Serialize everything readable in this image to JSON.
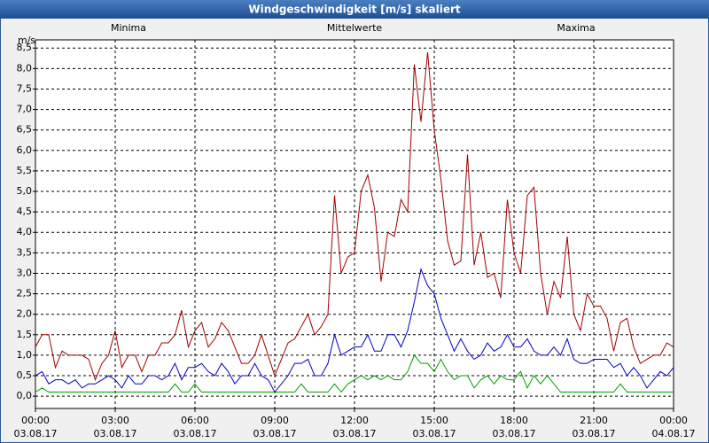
{
  "chart_data": {
    "type": "line",
    "title": "Windgeschwindigkeit [m/s] skaliert",
    "y_label": "m/s",
    "grid": true,
    "xlim": [
      0,
      24
    ],
    "xticks": [
      {
        "value": 0,
        "label": "00:00"
      },
      {
        "value": 3,
        "label": "03:00"
      },
      {
        "value": 6,
        "label": "06:00"
      },
      {
        "value": 9,
        "label": "09:00"
      },
      {
        "value": 12,
        "label": "12:00"
      },
      {
        "value": 15,
        "label": "15:00"
      },
      {
        "value": 18,
        "label": "18:00"
      },
      {
        "value": 21,
        "label": "21:00"
      },
      {
        "value": 24,
        "label": "00:00"
      }
    ],
    "xtick_dates": [
      "03.08.17",
      "03.08.17",
      "03.08.17",
      "03.08.17",
      "03.08.17",
      "03.08.17",
      "03.08.17",
      "03.08.17",
      "04.08.17"
    ],
    "ylim": [
      -0.3,
      8.7
    ],
    "yticks": [
      {
        "value": 0,
        "label": "0,0"
      },
      {
        "value": 0.5,
        "label": "0,5"
      },
      {
        "value": 1,
        "label": "1,0"
      },
      {
        "value": 1.5,
        "label": "1,5"
      },
      {
        "value": 2,
        "label": "2,0"
      },
      {
        "value": 2.5,
        "label": "2,5"
      },
      {
        "value": 3,
        "label": "3,0"
      },
      {
        "value": 3.5,
        "label": "3,5"
      },
      {
        "value": 4,
        "label": "4,0"
      },
      {
        "value": 4.5,
        "label": "4,5"
      },
      {
        "value": 5,
        "label": "5,0"
      },
      {
        "value": 5.5,
        "label": "5,5"
      },
      {
        "value": 6,
        "label": "6,0"
      },
      {
        "value": 6.5,
        "label": "6,5"
      },
      {
        "value": 7,
        "label": "7,0"
      },
      {
        "value": 7.5,
        "label": "7,5"
      },
      {
        "value": 8,
        "label": "8,0"
      },
      {
        "value": 8.5,
        "label": "8,5"
      }
    ],
    "x": [
      0,
      0.25,
      0.5,
      0.75,
      1,
      1.25,
      1.5,
      1.75,
      2,
      2.25,
      2.5,
      2.75,
      3,
      3.25,
      3.5,
      3.75,
      4,
      4.25,
      4.5,
      4.75,
      5,
      5.25,
      5.5,
      5.75,
      6,
      6.25,
      6.5,
      6.75,
      7,
      7.25,
      7.5,
      7.75,
      8,
      8.25,
      8.5,
      8.75,
      9,
      9.25,
      9.5,
      9.75,
      10,
      10.25,
      10.5,
      10.75,
      11,
      11.25,
      11.5,
      11.75,
      12,
      12.25,
      12.5,
      12.75,
      13,
      13.25,
      13.5,
      13.75,
      14,
      14.25,
      14.5,
      14.75,
      15,
      15.25,
      15.5,
      15.75,
      16,
      16.25,
      16.5,
      16.75,
      17,
      17.25,
      17.5,
      17.75,
      18,
      18.25,
      18.5,
      18.75,
      19,
      19.25,
      19.5,
      19.75,
      20,
      20.25,
      20.5,
      20.75,
      21,
      21.25,
      21.5,
      21.75,
      22,
      22.25,
      22.5,
      22.75,
      23,
      23.25,
      23.5,
      23.75,
      24
    ],
    "series": [
      {
        "name": "Minima",
        "color": "#00a000",
        "values": [
          0.1,
          0.2,
          0.1,
          0.1,
          0.1,
          0.1,
          0.1,
          0.1,
          0.1,
          0.1,
          0.1,
          0.1,
          0.1,
          0.1,
          0.1,
          0.1,
          0.1,
          0.1,
          0.1,
          0.1,
          0.1,
          0.3,
          0.1,
          0.1,
          0.3,
          0.1,
          0.1,
          0.1,
          0.1,
          0.1,
          0.1,
          0.1,
          0.1,
          0.1,
          0.1,
          0.1,
          0.1,
          0.1,
          0.1,
          0.1,
          0.3,
          0.1,
          0.1,
          0.1,
          0.1,
          0.3,
          0.1,
          0.3,
          0.4,
          0.5,
          0.4,
          0.5,
          0.4,
          0.5,
          0.4,
          0.4,
          0.6,
          1.0,
          0.8,
          0.8,
          0.6,
          0.9,
          0.6,
          0.4,
          0.5,
          0.5,
          0.2,
          0.4,
          0.5,
          0.3,
          0.5,
          0.4,
          0.4,
          0.6,
          0.2,
          0.5,
          0.3,
          0.5,
          0.3,
          0.1,
          0.1,
          0.1,
          0.1,
          0.1,
          0.1,
          0.1,
          0.1,
          0.1,
          0.3,
          0.1,
          0.1,
          0.1,
          0.1,
          0.1,
          0.1,
          0.1,
          0.1
        ]
      },
      {
        "name": "Mittelwerte",
        "color": "#0000c0",
        "values": [
          0.5,
          0.6,
          0.3,
          0.4,
          0.4,
          0.3,
          0.4,
          0.2,
          0.3,
          0.3,
          0.4,
          0.5,
          0.4,
          0.2,
          0.5,
          0.3,
          0.3,
          0.5,
          0.5,
          0.4,
          0.5,
          0.8,
          0.4,
          0.7,
          0.7,
          0.8,
          0.6,
          0.5,
          0.8,
          0.6,
          0.3,
          0.5,
          0.5,
          0.8,
          0.5,
          0.4,
          0.1,
          0.3,
          0.5,
          0.8,
          0.8,
          0.9,
          0.5,
          0.5,
          0.8,
          1.5,
          1.0,
          1.1,
          1.2,
          1.2,
          1.5,
          1.1,
          1.1,
          1.5,
          1.5,
          1.2,
          1.6,
          2.3,
          3.1,
          2.7,
          2.5,
          1.9,
          1.5,
          1.1,
          1.4,
          1.1,
          0.9,
          1.0,
          1.3,
          1.1,
          1.2,
          1.5,
          1.2,
          1.2,
          1.4,
          1.1,
          1.0,
          1.0,
          1.2,
          1.0,
          1.4,
          0.9,
          0.8,
          0.8,
          0.9,
          0.9,
          0.9,
          0.7,
          0.8,
          0.5,
          0.7,
          0.5,
          0.2,
          0.4,
          0.6,
          0.5,
          0.7
        ]
      },
      {
        "name": "Maxima",
        "color": "#a00000",
        "values": [
          1.2,
          1.5,
          1.5,
          0.7,
          1.1,
          1.0,
          1.0,
          1.0,
          0.9,
          0.4,
          0.8,
          1.0,
          1.6,
          0.7,
          1.0,
          1.0,
          0.6,
          1.0,
          1.0,
          1.3,
          1.3,
          1.5,
          2.1,
          1.2,
          1.6,
          1.8,
          1.2,
          1.4,
          1.8,
          1.6,
          1.2,
          0.8,
          0.8,
          1.0,
          1.5,
          1.0,
          0.5,
          0.9,
          1.3,
          1.4,
          1.7,
          2.0,
          1.5,
          1.7,
          2.0,
          4.9,
          3.0,
          3.4,
          3.5,
          5.0,
          5.4,
          4.6,
          2.8,
          4.0,
          3.9,
          4.8,
          4.5,
          8.1,
          6.7,
          8.4,
          6.5,
          5.3,
          3.8,
          3.2,
          3.3,
          5.9,
          3.2,
          4.0,
          2.9,
          3.0,
          2.4,
          4.8,
          3.5,
          3.0,
          4.9,
          5.1,
          3.0,
          2.0,
          2.8,
          2.4,
          3.9,
          2.0,
          1.6,
          2.5,
          2.2,
          2.2,
          1.9,
          1.1,
          1.8,
          1.9,
          1.2,
          0.8,
          0.9,
          1.0,
          1.0,
          1.3,
          1.2
        ]
      }
    ]
  }
}
